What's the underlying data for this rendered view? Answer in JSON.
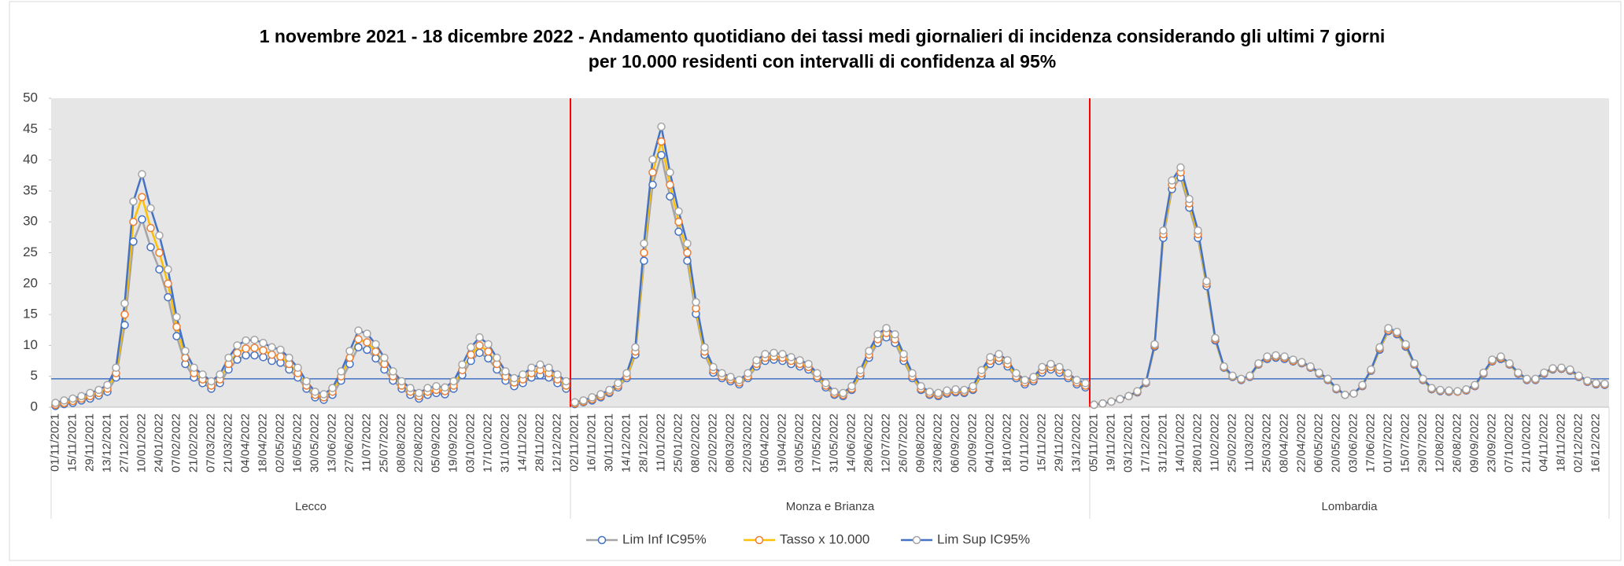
{
  "chart_data": {
    "type": "line",
    "title_lines": [
      "1 novembre 2021 - 18 dicembre 2022 - Andamento quotidiano  dei tassi medi giornalieri di incidenza considerando  gli ultimi 7 giorni",
      "per 10.000 residenti con  intervalli di confidenza  al 95%"
    ],
    "ylim": [
      0,
      50
    ],
    "yticks": [
      0,
      5,
      10,
      15,
      20,
      25,
      30,
      35,
      40,
      45,
      50
    ],
    "background": "#e6e6e6",
    "reference_line": {
      "value": 4.6,
      "color": "#4472c4"
    },
    "separator_color": "#ff0000",
    "legend": "bottom",
    "groups": [
      {
        "name": "Lecco",
        "categories": [
          "01/11/2021",
          null,
          "15/11/2021",
          null,
          "29/11/2021",
          null,
          "13/12/2021",
          null,
          "27/12/2021",
          null,
          "10/01/2022",
          null,
          "24/01/2022",
          null,
          "07/02/2022",
          null,
          "21/02/2022",
          null,
          "07/03/2022",
          null,
          "21/03/2022",
          null,
          "04/04/2022",
          null,
          "18/04/2022",
          null,
          "02/05/2022",
          null,
          "16/05/2022",
          null,
          "30/05/2022",
          null,
          "13/06/2022",
          null,
          "27/06/2022",
          null,
          "11/07/2022",
          null,
          "25/07/2022",
          null,
          "08/08/2022",
          null,
          "22/08/2022",
          null,
          "05/09/2022",
          null,
          "19/09/2022",
          null,
          "03/10/2022",
          null,
          "17/10/2022",
          null,
          "31/10/2022",
          null,
          "14/11/2022",
          null,
          "28/11/2022",
          null,
          "12/12/2022",
          null
        ]
      },
      {
        "name": "Monza e Brianza",
        "categories": [
          "02/11/2021",
          null,
          "16/11/2021",
          null,
          "30/11/2021",
          null,
          "14/12/2021",
          null,
          "28/12/2021",
          null,
          "11/01/2022",
          null,
          "25/01/2022",
          null,
          "08/02/2022",
          null,
          "22/02/2022",
          null,
          "08/03/2022",
          null,
          "22/03/2022",
          null,
          "05/04/2022",
          null,
          "19/04/2022",
          null,
          "03/05/2022",
          null,
          "17/05/2022",
          null,
          "31/05/2022",
          null,
          "14/06/2022",
          null,
          "28/06/2022",
          null,
          "12/07/2022",
          null,
          "26/07/2022",
          null,
          "09/08/2022",
          null,
          "23/08/2022",
          null,
          "06/09/2022",
          null,
          "20/09/2022",
          null,
          "04/10/2022",
          null,
          "18/10/2022",
          null,
          "01/11/2022",
          null,
          "15/11/2022",
          null,
          "29/11/2022",
          null,
          "13/12/2022",
          null
        ]
      },
      {
        "name": "Lombardia",
        "categories": [
          "05/11/2021",
          null,
          "19/11/2021",
          null,
          "03/12/2021",
          null,
          "17/12/2021",
          null,
          "31/12/2021",
          null,
          "14/01/2022",
          null,
          "28/01/2022",
          null,
          "11/02/2022",
          null,
          "25/02/2022",
          null,
          "11/03/2022",
          null,
          "25/03/2022",
          null,
          "08/04/2022",
          null,
          "22/04/2022",
          null,
          "06/05/2022",
          null,
          "20/05/2022",
          null,
          "03/06/2022",
          null,
          "17/06/2022",
          null,
          "01/07/2022",
          null,
          "15/07/2022",
          null,
          "29/07/2022",
          null,
          "12/08/2022",
          null,
          "26/08/2022",
          null,
          "09/09/2022",
          null,
          "23/09/2022",
          null,
          "07/10/2022",
          null,
          "21/10/2022",
          null,
          "04/11/2022",
          null,
          "18/11/2022",
          null,
          "02/12/2022",
          null,
          "16/12/2022",
          null
        ]
      }
    ],
    "series": [
      {
        "name": "Lim Inf IC95%",
        "color": "#a5a5a5",
        "marker_color": "#4472c4",
        "values": [
          [
            0.2,
            0.5,
            0.7,
            1.1,
            1.4,
            1.9,
            2.5,
            4.8,
            13.3,
            26.8,
            30.4,
            25.9,
            22.3,
            17.8,
            11.5,
            7.0,
            4.8,
            3.9,
            3.0,
            3.9,
            6.1,
            7.7,
            8.4,
            8.4,
            8.1,
            7.5,
            7.2,
            6.1,
            4.8,
            3.0,
            1.6,
            1.2,
            2.0,
            4.3,
            7.0,
            9.7,
            9.3,
            7.9,
            6.1,
            4.3,
            3.0,
            2.0,
            1.4,
            2.0,
            2.3,
            2.1,
            3.0,
            5.2,
            7.5,
            8.8,
            7.9,
            6.1,
            4.3,
            3.4,
            3.9,
            4.8,
            5.2,
            4.8,
            3.9,
            3.0
          ],
          [
            0.5,
            0.8,
            1.1,
            1.6,
            2.3,
            3.2,
            4.7,
            8.5,
            23.7,
            36.0,
            40.8,
            34.1,
            28.4,
            23.7,
            15.1,
            8.5,
            5.6,
            4.7,
            4.2,
            3.7,
            4.7,
            6.6,
            7.5,
            7.7,
            7.5,
            7.0,
            6.6,
            6.1,
            4.7,
            3.2,
            2.0,
            1.8,
            2.8,
            5.1,
            8.0,
            10.4,
            11.3,
            10.4,
            7.5,
            4.7,
            2.8,
            2.0,
            1.8,
            2.2,
            2.4,
            2.3,
            2.8,
            5.1,
            7.0,
            7.5,
            6.6,
            4.7,
            3.7,
            4.2,
            5.6,
            6.1,
            5.6,
            4.7,
            3.7,
            3.2
          ],
          [
            0.4,
            0.6,
            0.9,
            1.3,
            1.8,
            2.4,
            3.9,
            9.8,
            27.4,
            35.3,
            37.2,
            32.3,
            27.4,
            19.6,
            10.8,
            6.4,
            4.9,
            4.4,
            4.9,
            6.9,
            7.8,
            8.0,
            7.8,
            7.4,
            7.1,
            6.4,
            5.4,
            4.4,
            2.9,
            2.0,
            2.2,
            3.4,
            5.9,
            9.3,
            12.3,
            11.8,
            9.8,
            6.9,
            4.4,
            2.9,
            2.6,
            2.5,
            2.5,
            2.7,
            3.4,
            5.4,
            7.4,
            7.8,
            6.9,
            5.4,
            4.4,
            4.4,
            5.4,
            6.1,
            6.2,
            5.9,
            4.9,
            4.1,
            3.7,
            3.6
          ]
        ]
      },
      {
        "name": "Tasso x 10.000",
        "color": "#ffc000",
        "marker_color": "#ed7d31",
        "values": [
          [
            0.4,
            0.7,
            1.0,
            1.4,
            1.8,
            2.3,
            3.0,
            5.5,
            15,
            30,
            34,
            29,
            25,
            20,
            13,
            8,
            5.5,
            4.5,
            3.5,
            4.5,
            7,
            8.8,
            9.5,
            9.6,
            9.2,
            8.5,
            8.2,
            7,
            5.5,
            3.5,
            2,
            1.6,
            2.5,
            5,
            8,
            11,
            10.5,
            9,
            7,
            5,
            3.5,
            2.5,
            1.8,
            2.5,
            2.8,
            2.6,
            3.5,
            6,
            8.5,
            10,
            9,
            7,
            5,
            4,
            4.5,
            5.5,
            6,
            5.5,
            4.5,
            3.5
          ],
          [
            0.6,
            0.9,
            1.3,
            1.8,
            2.5,
            3.5,
            5,
            9,
            25,
            38,
            43,
            36,
            30,
            25,
            16,
            9,
            6,
            5,
            4.5,
            4,
            5,
            7,
            8,
            8.2,
            8,
            7.5,
            7,
            6.5,
            5,
            3.5,
            2.2,
            2,
            3,
            5.5,
            8.5,
            11,
            12,
            11,
            8,
            5,
            3,
            2.2,
            2,
            2.4,
            2.6,
            2.5,
            3,
            5.5,
            7.5,
            8,
            7,
            5,
            4,
            4.5,
            6,
            6.5,
            6,
            5,
            4,
            3.5
          ],
          [
            0.4,
            0.6,
            0.9,
            1.3,
            1.8,
            2.5,
            4,
            10,
            28,
            36,
            38,
            33,
            28,
            20,
            11,
            6.5,
            5,
            4.5,
            5,
            7,
            8,
            8.2,
            8,
            7.5,
            7.2,
            6.5,
            5.5,
            4.5,
            3,
            2,
            2.2,
            3.5,
            6,
            9.5,
            12.5,
            12,
            10,
            7,
            4.5,
            3,
            2.7,
            2.6,
            2.5,
            2.8,
            3.5,
            5.5,
            7.5,
            8,
            7,
            5.5,
            4.5,
            4.5,
            5.5,
            6.2,
            6.3,
            6,
            5,
            4.2,
            3.8,
            3.7
          ]
        ]
      },
      {
        "name": "Lim Sup IC95%",
        "color": "#4472c4",
        "marker_color": "#a5a5a5",
        "values": [
          [
            0.7,
            1.1,
            1.4,
            1.8,
            2.3,
            2.8,
            3.6,
            6.4,
            16.8,
            33.3,
            37.7,
            32.2,
            27.8,
            22.3,
            14.6,
            9.1,
            6.4,
            5.3,
            4.2,
            5.3,
            8.0,
            10.0,
            10.8,
            10.9,
            10.4,
            9.7,
            9.3,
            8.0,
            6.4,
            4.2,
            2.5,
            2.1,
            3.1,
            5.8,
            9.1,
            12.4,
            11.9,
            10.2,
            8.0,
            5.8,
            4.2,
            3.1,
            2.3,
            3.1,
            3.4,
            3.2,
            4.2,
            6.9,
            9.7,
            11.3,
            10.2,
            8.0,
            5.8,
            4.7,
            5.3,
            6.4,
            6.9,
            6.4,
            5.3,
            4.2
          ],
          [
            0.8,
            1.1,
            1.6,
            2.1,
            2.8,
            3.9,
            5.5,
            9.7,
            26.5,
            40.1,
            45.4,
            38.0,
            31.7,
            26.5,
            17.0,
            9.7,
            6.5,
            5.5,
            4.9,
            4.4,
            5.5,
            7.6,
            8.6,
            8.8,
            8.6,
            8.1,
            7.6,
            7.0,
            5.5,
            3.9,
            2.5,
            2.3,
            3.4,
            6.0,
            9.1,
            11.8,
            12.8,
            11.8,
            8.6,
            5.5,
            3.4,
            2.5,
            2.3,
            2.7,
            2.9,
            2.8,
            3.4,
            6.0,
            8.1,
            8.6,
            7.6,
            5.5,
            4.4,
            4.9,
            6.5,
            7.0,
            6.5,
            5.5,
            4.4,
            3.9
          ],
          [
            0.4,
            0.6,
            0.9,
            1.3,
            1.8,
            2.6,
            4.1,
            10.2,
            28.6,
            36.7,
            38.8,
            33.7,
            28.6,
            20.4,
            11.2,
            6.6,
            5.1,
            4.6,
            5.1,
            7.1,
            8.2,
            8.4,
            8.2,
            7.7,
            7.3,
            6.6,
            5.6,
            4.6,
            3.1,
            2.0,
            2.2,
            3.6,
            6.1,
            9.7,
            12.8,
            12.2,
            10.2,
            7.1,
            4.6,
            3.1,
            2.8,
            2.7,
            2.6,
            2.9,
            3.6,
            5.6,
            7.7,
            8.2,
            7.1,
            5.6,
            4.6,
            4.6,
            5.6,
            6.3,
            6.4,
            6.1,
            5.1,
            4.3,
            3.9,
            3.8
          ]
        ]
      }
    ]
  }
}
